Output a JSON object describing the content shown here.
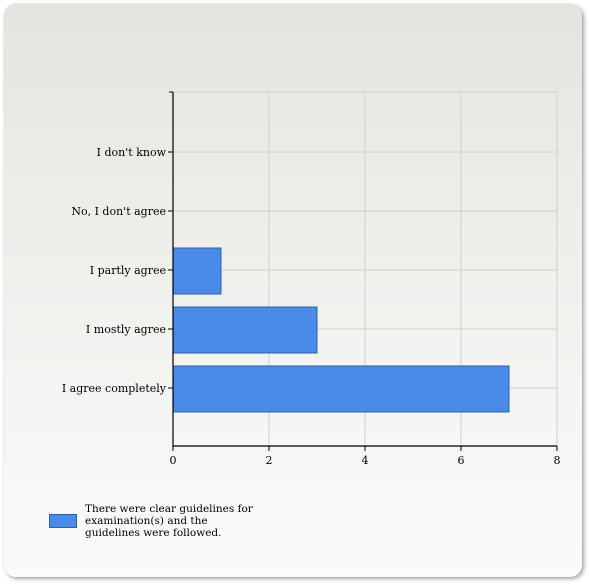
{
  "chart_data": {
    "type": "bar",
    "orientation": "horizontal",
    "categories": [
      "I don't know",
      "No, I don't agree",
      "I partly agree",
      "I mostly agree",
      "I agree completely"
    ],
    "series": [
      {
        "name": "There were clear guidelines for examination(s) and the guidelines were followed.",
        "values": [
          0,
          0,
          1,
          3,
          7
        ]
      }
    ],
    "xlim": [
      0,
      8
    ],
    "xticks": [
      0,
      2,
      4,
      6,
      8
    ],
    "grid": true,
    "legend_position": "bottom-left",
    "colors": {
      "bar_fill": "#4a8ae8",
      "bar_stroke": "#2e5fa8",
      "grid": "#cfcfcf",
      "axis": "#000000"
    }
  }
}
